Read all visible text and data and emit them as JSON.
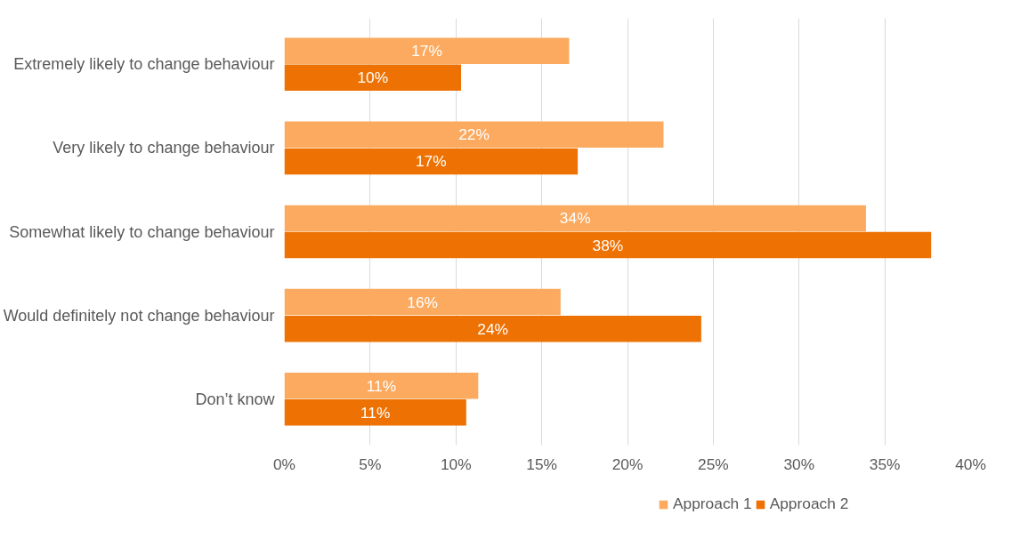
{
  "chart_data": {
    "type": "bar",
    "orientation": "horizontal",
    "categories": [
      "Extremely likely to change behaviour",
      "Very likely to change behaviour",
      "Somewhat likely to change behaviour",
      "Would definitely not change behaviour",
      "Don’t know"
    ],
    "series": [
      {
        "name": "Approach 1",
        "color": "#fbaa5f",
        "values": [
          16.6,
          22.1,
          33.9,
          16.1,
          11.3
        ],
        "value_labels": [
          "17%",
          "22%",
          "34%",
          "16%",
          "11%"
        ]
      },
      {
        "name": "Approach 2",
        "color": "#ee7203",
        "values": [
          10.3,
          17.1,
          37.7,
          24.3,
          10.6
        ],
        "value_labels": [
          "10%",
          "17%",
          "38%",
          "24%",
          "11%"
        ]
      }
    ],
    "xlim": [
      0,
      40
    ],
    "xticks": [
      {
        "value": 0,
        "label": "0%"
      },
      {
        "value": 5,
        "label": "5%"
      },
      {
        "value": 10,
        "label": "10%"
      },
      {
        "value": 15,
        "label": "15%"
      },
      {
        "value": 20,
        "label": "20%"
      },
      {
        "value": 25,
        "label": "25%"
      },
      {
        "value": 30,
        "label": "30%"
      },
      {
        "value": 35,
        "label": "35%"
      },
      {
        "value": 40,
        "label": "40%"
      }
    ],
    "grid": "x",
    "legend": "bottom"
  }
}
